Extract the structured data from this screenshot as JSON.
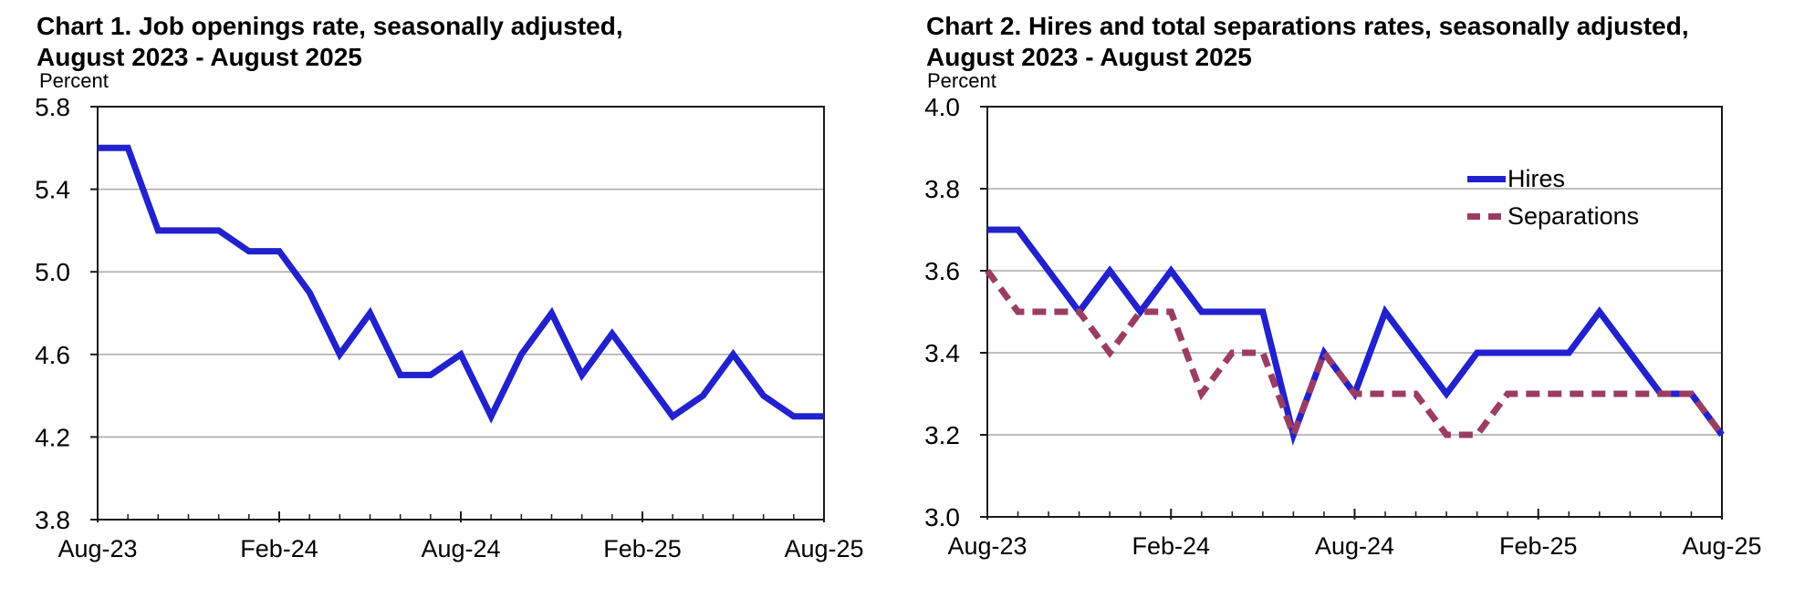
{
  "page": {
    "background": "#ffffff"
  },
  "months": [
    "Aug-23",
    "Sep-23",
    "Oct-23",
    "Nov-23",
    "Dec-23",
    "Jan-24",
    "Feb-24",
    "Mar-24",
    "Apr-24",
    "May-24",
    "Jun-24",
    "Jul-24",
    "Aug-24",
    "Sep-24",
    "Oct-24",
    "Nov-24",
    "Dec-24",
    "Jan-25",
    "Feb-25",
    "Mar-25",
    "Apr-25",
    "May-25",
    "Jun-25",
    "Jul-25",
    "Aug-25"
  ],
  "charts": [
    {
      "name": "chart-1-job-openings",
      "title_line1": "Chart 1. Job openings rate, seasonally adjusted,",
      "title_line2": "August 2023 - August 2025",
      "unit_label": "Percent",
      "chart_data": {
        "type": "line",
        "x": [
          "Aug-23",
          "Sep-23",
          "Oct-23",
          "Nov-23",
          "Dec-23",
          "Jan-24",
          "Feb-24",
          "Mar-24",
          "Apr-24",
          "May-24",
          "Jun-24",
          "Jul-24",
          "Aug-24",
          "Sep-24",
          "Oct-24",
          "Nov-24",
          "Dec-24",
          "Jan-25",
          "Feb-25",
          "Mar-25",
          "Apr-25",
          "May-25",
          "Jun-25",
          "Jul-25",
          "Aug-25"
        ],
        "series": [
          {
            "name": "Job openings rate",
            "color": "#2121CE",
            "style": "solid",
            "values": [
              5.6,
              5.6,
              5.2,
              5.2,
              5.2,
              5.1,
              5.1,
              4.9,
              4.6,
              4.8,
              4.5,
              4.5,
              4.6,
              4.3,
              4.6,
              4.8,
              4.5,
              4.7,
              4.5,
              4.3,
              4.4,
              4.6,
              4.4,
              4.3,
              4.3
            ]
          }
        ],
        "ylabel": "Percent",
        "ylim": [
          3.8,
          5.8
        ],
        "yticks": [
          "5.8",
          "5.4",
          "5.0",
          "4.6",
          "4.2",
          "3.8"
        ],
        "xtick_labels": [
          "Aug-23",
          "Feb-24",
          "Aug-24",
          "Feb-25",
          "Aug-25"
        ],
        "grid": true,
        "legend": null
      }
    },
    {
      "name": "chart-2-hires-separations",
      "title_line1": "Chart 2. Hires and total separations rates, seasonally adjusted,",
      "title_line2": "August 2023 - August 2025",
      "unit_label": "Percent",
      "chart_data": {
        "type": "line",
        "x": [
          "Aug-23",
          "Sep-23",
          "Oct-23",
          "Nov-23",
          "Dec-23",
          "Jan-24",
          "Feb-24",
          "Mar-24",
          "Apr-24",
          "May-24",
          "Jun-24",
          "Jul-24",
          "Aug-24",
          "Sep-24",
          "Oct-24",
          "Nov-24",
          "Dec-24",
          "Jan-25",
          "Feb-25",
          "Mar-25",
          "Apr-25",
          "May-25",
          "Jun-25",
          "Jul-25",
          "Aug-25"
        ],
        "series": [
          {
            "name": "Hires",
            "color": "#2121CE",
            "style": "solid",
            "values": [
              3.7,
              3.7,
              3.6,
              3.5,
              3.6,
              3.5,
              3.6,
              3.5,
              3.5,
              3.5,
              3.2,
              3.4,
              3.3,
              3.5,
              3.4,
              3.3,
              3.4,
              3.4,
              3.4,
              3.4,
              3.5,
              3.4,
              3.3,
              3.3,
              3.2
            ]
          },
          {
            "name": "Separations",
            "color": "#9B3D63",
            "style": "dashed",
            "values": [
              3.6,
              3.5,
              3.5,
              3.5,
              3.4,
              3.5,
              3.5,
              3.3,
              3.4,
              3.4,
              3.2,
              3.4,
              3.3,
              3.3,
              3.3,
              3.2,
              3.2,
              3.3,
              3.3,
              3.3,
              3.3,
              3.3,
              3.3,
              3.3,
              3.2
            ]
          }
        ],
        "ylabel": "Percent",
        "ylim": [
          3.0,
          4.0
        ],
        "yticks": [
          "4.0",
          "3.8",
          "3.6",
          "3.4",
          "3.2",
          "3.0"
        ],
        "xtick_labels": [
          "Aug-23",
          "Feb-24",
          "Aug-24",
          "Feb-25",
          "Aug-25"
        ],
        "grid": true,
        "legend": {
          "position": "upper-right",
          "entries": [
            {
              "label": "Hires",
              "color": "#2121CE",
              "style": "solid"
            },
            {
              "label": "Separations",
              "color": "#9B3D63",
              "style": "dashed"
            }
          ]
        }
      }
    }
  ],
  "colors": {
    "hires_blue": "#2121CE",
    "separations_maroon": "#9B3D63",
    "gridline": "#A8A8A8",
    "axis": "#1a1a1a"
  }
}
